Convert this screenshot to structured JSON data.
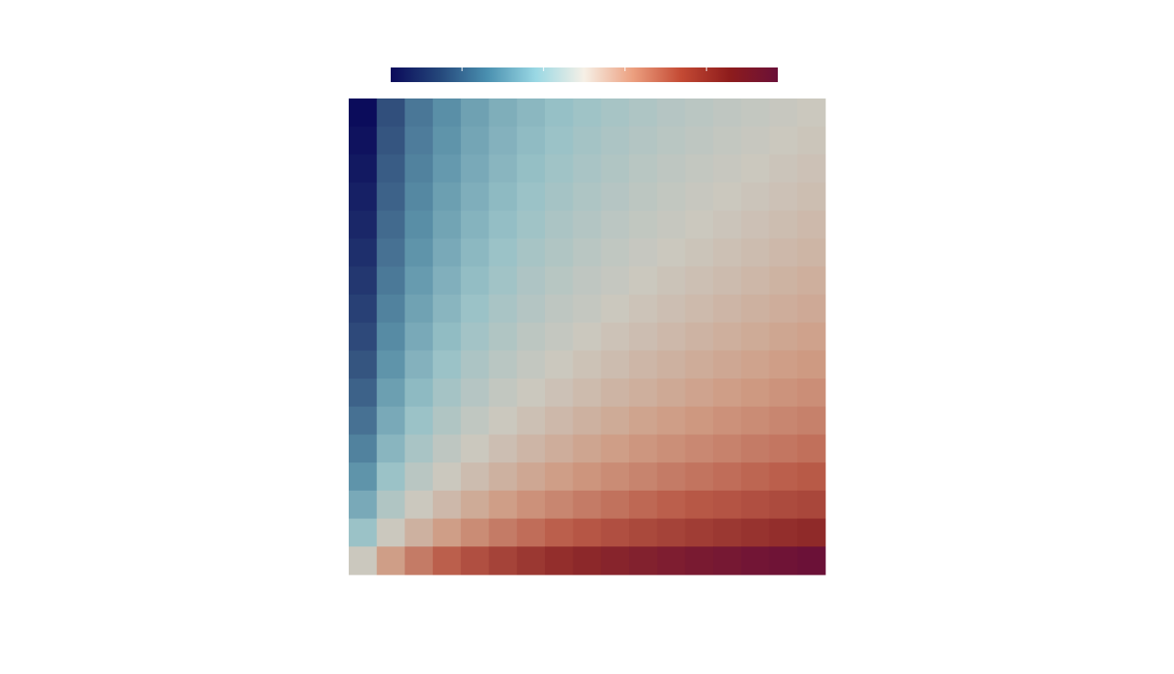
{
  "chart_data": {
    "type": "heatmap",
    "zlim": [
      -2.85,
      2.85
    ],
    "zticks": [
      -1.8,
      -0.6,
      0.6,
      1.8
    ],
    "colormap": [
      "#0a0a5a",
      "#24467a",
      "#4a90b0",
      "#9ad8e4",
      "#f6f0e6",
      "#eca080",
      "#c44a34",
      "#8e1c1c",
      "#6a1038"
    ],
    "values": [
      [
        -2.83,
        -2.14,
        -1.73,
        -1.45,
        -1.22,
        -1.04,
        -0.89,
        -0.75,
        -0.64,
        -0.53,
        -0.44,
        -0.35,
        -0.27,
        -0.19,
        -0.13,
        -0.06,
        0
      ],
      [
        -2.77,
        -2.08,
        -1.67,
        -1.39,
        -1.16,
        -0.98,
        -0.83,
        -0.69,
        -0.58,
        -0.47,
        -0.38,
        -0.29,
        -0.21,
        -0.13,
        -0.07,
        0,
        0.06
      ],
      [
        -2.71,
        -2.01,
        -1.61,
        -1.32,
        -1.1,
        -0.92,
        -0.76,
        -0.63,
        -0.51,
        -0.41,
        -0.31,
        -0.22,
        -0.14,
        -0.07,
        0,
        0.07,
        0.13
      ],
      [
        -2.64,
        -1.95,
        -1.54,
        -1.25,
        -1.03,
        -0.85,
        -0.69,
        -0.56,
        -0.44,
        -0.34,
        -0.24,
        -0.15,
        -0.07,
        0,
        0.07,
        0.13,
        0.19
      ],
      [
        -2.57,
        -1.87,
        -1.47,
        -1.18,
        -0.96,
        -0.77,
        -0.62,
        -0.49,
        -0.37,
        -0.26,
        -0.17,
        -0.08,
        0,
        0.07,
        0.14,
        0.21,
        0.27
      ],
      [
        -2.49,
        -1.79,
        -1.39,
        -1.1,
        -0.88,
        -0.69,
        -0.54,
        -0.41,
        -0.29,
        -0.18,
        -0.09,
        0,
        0.08,
        0.15,
        0.22,
        0.29,
        0.35
      ],
      [
        -2.4,
        -1.71,
        -1.3,
        -1.01,
        -0.79,
        -0.61,
        -0.45,
        -0.32,
        -0.2,
        -0.1,
        0,
        0.09,
        0.17,
        0.24,
        0.31,
        0.38,
        0.44
      ],
      [
        -2.3,
        -1.61,
        -1.2,
        -0.92,
        -0.69,
        -0.51,
        -0.36,
        -0.22,
        -0.11,
        0,
        0.1,
        0.18,
        0.26,
        0.34,
        0.41,
        0.47,
        0.53
      ],
      [
        -2.2,
        -1.5,
        -1.1,
        -0.81,
        -0.59,
        -0.41,
        -0.25,
        -0.12,
        0,
        0.11,
        0.2,
        0.29,
        0.37,
        0.44,
        0.51,
        0.58,
        0.64
      ],
      [
        -2.08,
        -1.39,
        -0.98,
        -0.69,
        -0.47,
        -0.29,
        -0.13,
        0,
        0.12,
        0.22,
        0.32,
        0.41,
        0.49,
        0.56,
        0.63,
        0.69,
        0.75
      ],
      [
        -1.95,
        -1.25,
        -0.85,
        -0.56,
        -0.34,
        -0.15,
        0,
        0.13,
        0.25,
        0.36,
        0.45,
        0.54,
        0.62,
        0.69,
        0.76,
        0.83,
        0.89
      ],
      [
        -1.79,
        -1.1,
        -0.69,
        -0.41,
        -0.18,
        0,
        0.15,
        0.29,
        0.41,
        0.51,
        0.61,
        0.69,
        0.77,
        0.85,
        0.92,
        0.98,
        1.04
      ],
      [
        -1.61,
        -0.92,
        -0.51,
        -0.22,
        0,
        0.18,
        0.34,
        0.47,
        0.59,
        0.69,
        0.79,
        0.88,
        0.96,
        1.03,
        1.1,
        1.16,
        1.22
      ],
      [
        -1.39,
        -0.69,
        -0.29,
        0,
        0.22,
        0.41,
        0.56,
        0.69,
        0.81,
        0.92,
        1.01,
        1.1,
        1.18,
        1.25,
        1.32,
        1.39,
        1.45
      ],
      [
        -1.1,
        -0.41,
        0,
        0.29,
        0.51,
        0.69,
        0.85,
        0.98,
        1.1,
        1.2,
        1.3,
        1.39,
        1.47,
        1.54,
        1.61,
        1.67,
        1.73
      ],
      [
        -0.69,
        0,
        0.41,
        0.69,
        0.92,
        1.1,
        1.25,
        1.39,
        1.5,
        1.61,
        1.71,
        1.79,
        1.87,
        1.95,
        2.01,
        2.08,
        2.14
      ],
      [
        0,
        0.69,
        1.1,
        1.39,
        1.61,
        1.79,
        1.95,
        2.08,
        2.2,
        2.3,
        2.4,
        2.49,
        2.57,
        2.64,
        2.71,
        2.77,
        2.83
      ]
    ]
  }
}
